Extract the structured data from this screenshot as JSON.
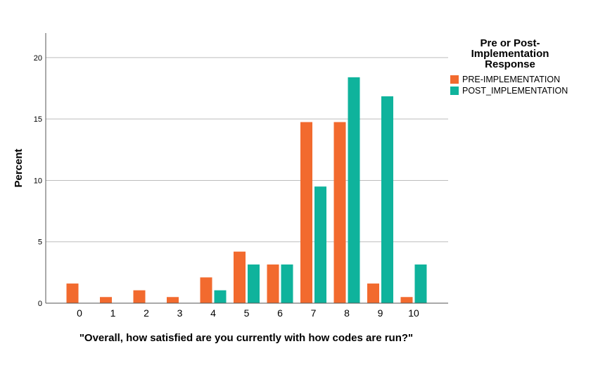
{
  "chart_data": {
    "type": "bar",
    "xlabel": "\"Overall, how satisfied are you currently with how codes are run?\"",
    "ylabel": "Percent",
    "categories": [
      "0",
      "1",
      "2",
      "3",
      "4",
      "5",
      "6",
      "7",
      "8",
      "9",
      "10"
    ],
    "ylim": [
      0,
      22
    ],
    "yticks": [
      "0",
      "5",
      "10",
      "15",
      "20"
    ],
    "grid": true,
    "legend": {
      "title": "Pre or Post-\nImplementation\nResponse",
      "placement": "right"
    },
    "series": [
      {
        "name": "PRE-IMPLEMENTATION",
        "color": "#f26a2e",
        "values": [
          1.6,
          0.5,
          1.05,
          0.5,
          2.1,
          4.2,
          3.15,
          14.75,
          14.75,
          1.6,
          0.5
        ]
      },
      {
        "name": "POST_IMPLEMENTATION",
        "color": "#0fb39c",
        "values": [
          0,
          0,
          0,
          0,
          1.05,
          3.15,
          3.15,
          9.5,
          18.4,
          16.85,
          3.15
        ]
      }
    ]
  }
}
